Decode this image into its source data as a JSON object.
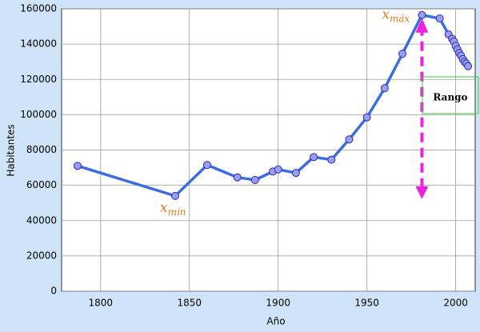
{
  "chart_data": {
    "type": "line",
    "x_label": "Año",
    "y_label": "Habitantes",
    "x": [
      1787,
      1842,
      1860,
      1877,
      1887,
      1897,
      1900,
      1910,
      1920,
      1930,
      1940,
      1950,
      1960,
      1970,
      1981,
      1991,
      1996,
      1998,
      1999,
      2000,
      2001,
      2002,
      2003,
      2004,
      2005,
      2006,
      2007
    ],
    "series": [
      {
        "color": "#3a6ee0",
        "marker_color": "#9a9ef0",
        "values": [
          71000,
          54000,
          71500,
          64500,
          63000,
          67800,
          69000,
          67000,
          76000,
          74500,
          86000,
          98500,
          115000,
          134500,
          156500,
          154500,
          145500,
          143000,
          141500,
          139000,
          137000,
          135000,
          133500,
          131500,
          130000,
          129000,
          127500
        ]
      }
    ],
    "xlim": [
      1778,
      2011
    ],
    "ylim": [
      0,
      160000
    ],
    "xticks": [
      1800,
      1850,
      1900,
      1950,
      2000
    ],
    "yticks": [
      0,
      20000,
      40000,
      60000,
      80000,
      100000,
      120000,
      140000,
      160000
    ],
    "grid": true,
    "annotations": {
      "min": {
        "text": "x",
        "sub": "mín"
      },
      "max": {
        "text": "x",
        "sub": "máx"
      },
      "range": "Rango"
    }
  }
}
